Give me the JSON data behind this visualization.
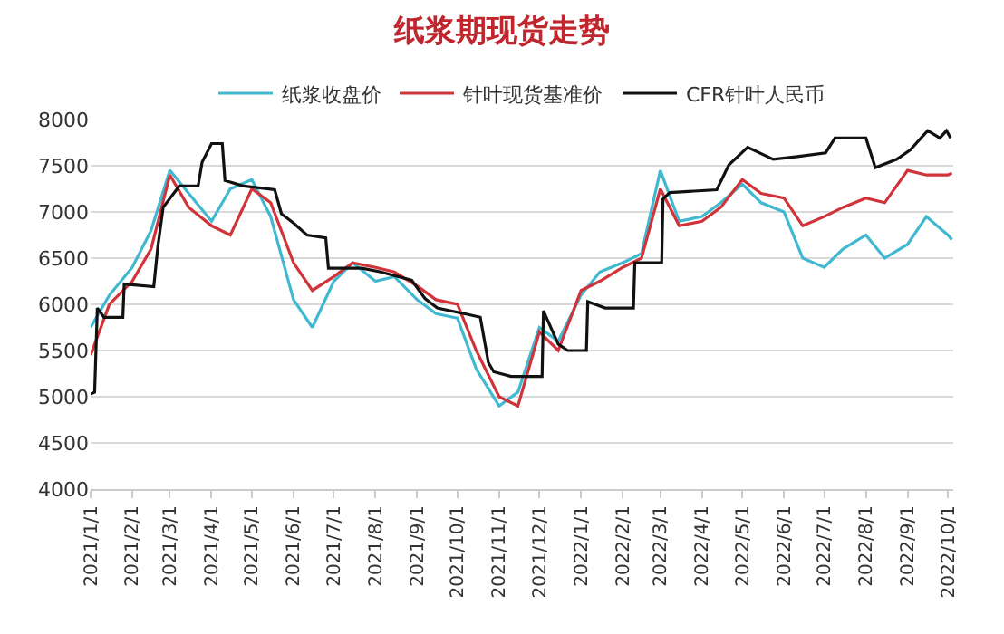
{
  "chart_data": {
    "type": "line",
    "title": "纸浆期现货走势",
    "x": [
      "2021-01-01",
      "2021-01-15",
      "2021-02-01",
      "2021-02-15",
      "2021-03-01",
      "2021-03-15",
      "2021-04-01",
      "2021-04-15",
      "2021-05-01",
      "2021-05-15",
      "2021-06-01",
      "2021-06-15",
      "2021-07-01",
      "2021-07-15",
      "2021-08-01",
      "2021-08-15",
      "2021-09-01",
      "2021-09-15",
      "2021-10-01",
      "2021-10-15",
      "2021-11-01",
      "2021-11-15",
      "2021-12-01",
      "2021-12-15",
      "2022-01-01",
      "2022-01-15",
      "2022-02-01",
      "2022-02-15",
      "2022-03-01",
      "2022-03-15",
      "2022-04-01",
      "2022-04-15",
      "2022-05-01",
      "2022-05-15",
      "2022-06-01",
      "2022-06-15",
      "2022-07-01",
      "2022-07-15",
      "2022-08-01",
      "2022-08-15",
      "2022-09-01",
      "2022-09-15",
      "2022-10-01",
      "2022-10-04"
    ],
    "series": [
      {
        "name": "纸浆收盘价",
        "color": "#3fb8d0",
        "values": [
          5750,
          6100,
          6400,
          6800,
          7450,
          7200,
          6900,
          7250,
          7350,
          6950,
          6050,
          5750,
          6250,
          6450,
          6250,
          6300,
          6050,
          5900,
          5850,
          5300,
          4900,
          5050,
          5750,
          5600,
          6100,
          6350,
          6450,
          6550,
          7450,
          6900,
          6950,
          7100,
          7300,
          7100,
          7000,
          6500,
          6400,
          6600,
          6750,
          6500,
          6650,
          6950,
          6750,
          6700
        ]
      },
      {
        "name": "针叶现货基准价",
        "color": "#d0343a",
        "values": [
          5450,
          6000,
          6250,
          6600,
          7400,
          7050,
          6850,
          6750,
          7250,
          7100,
          6450,
          6150,
          6300,
          6450,
          6400,
          6350,
          6200,
          6050,
          6000,
          5500,
          5000,
          4900,
          5700,
          5500,
          6150,
          6250,
          6400,
          6500,
          7250,
          6850,
          6900,
          7050,
          7350,
          7200,
          7150,
          6850,
          6950,
          7050,
          7150,
          7100,
          7450,
          7400,
          7400,
          7420
        ]
      },
      {
        "name": "CFR针叶人民币",
        "color": "#111111",
        "x": [
          "2021-01-01",
          "2021-01-04",
          "2021-01-06",
          "2021-01-11",
          "2021-01-25",
          "2021-01-26",
          "2021-02-17",
          "2021-02-20",
          "2021-02-24",
          "2021-03-08",
          "2021-03-22",
          "2021-03-25",
          "2021-04-01",
          "2021-04-09",
          "2021-04-11",
          "2021-04-25",
          "2021-05-18",
          "2021-05-23",
          "2021-06-01",
          "2021-06-11",
          "2021-06-25",
          "2021-06-27",
          "2021-07-22",
          "2021-08-05",
          "2021-08-28",
          "2021-09-07",
          "2021-09-16",
          "2021-10-09",
          "2021-10-18",
          "2021-10-24",
          "2021-10-28",
          "2021-11-10",
          "2021-12-03",
          "2021-12-04",
          "2021-12-15",
          "2021-12-22",
          "2022-01-05",
          "2022-01-06",
          "2022-01-19",
          "2022-02-09",
          "2022-02-10",
          "2022-03-02",
          "2022-03-03",
          "2022-03-08",
          "2022-04-12",
          "2022-04-21",
          "2022-05-05",
          "2022-05-24",
          "2022-06-11",
          "2022-07-02",
          "2022-07-09",
          "2022-08-01",
          "2022-08-08",
          "2022-08-24",
          "2022-09-03",
          "2022-09-16",
          "2022-09-25",
          "2022-09-30",
          "2022-10-03"
        ],
        "values": [
          5030,
          5050,
          5960,
          5860,
          5860,
          6220,
          6190,
          6620,
          7050,
          7280,
          7280,
          7540,
          7740,
          7740,
          7340,
          7280,
          7240,
          6980,
          6880,
          6750,
          6720,
          6390,
          6390,
          6350,
          6260,
          6060,
          5960,
          5890,
          5860,
          5370,
          5270,
          5220,
          5220,
          5930,
          5570,
          5500,
          5500,
          6030,
          5960,
          5960,
          6450,
          6450,
          7140,
          7210,
          7240,
          7510,
          7700,
          7570,
          7600,
          7640,
          7800,
          7800,
          7480,
          7570,
          7670,
          7880,
          7800,
          7880,
          7800
        ]
      }
    ],
    "xlim": [
      "2021-01-01",
      "2022-10-05"
    ],
    "xticks": [
      {
        "value": "2021-01-01",
        "label": "2021/1/1"
      },
      {
        "value": "2021-02-01",
        "label": "2021/2/1"
      },
      {
        "value": "2021-03-01",
        "label": "2021/3/1"
      },
      {
        "value": "2021-04-01",
        "label": "2021/4/1"
      },
      {
        "value": "2021-05-01",
        "label": "2021/5/1"
      },
      {
        "value": "2021-06-01",
        "label": "2021/6/1"
      },
      {
        "value": "2021-07-01",
        "label": "2021/7/1"
      },
      {
        "value": "2021-08-01",
        "label": "2021/8/1"
      },
      {
        "value": "2021-09-01",
        "label": "2021/9/1"
      },
      {
        "value": "2021-10-01",
        "label": "2021/10/1"
      },
      {
        "value": "2021-11-01",
        "label": "2021/11/1"
      },
      {
        "value": "2021-12-01",
        "label": "2021/12/1"
      },
      {
        "value": "2022-01-01",
        "label": "2022/1/1"
      },
      {
        "value": "2022-02-01",
        "label": "2022/2/1"
      },
      {
        "value": "2022-03-01",
        "label": "2022/3/1"
      },
      {
        "value": "2022-04-01",
        "label": "2022/4/1"
      },
      {
        "value": "2022-05-01",
        "label": "2022/5/1"
      },
      {
        "value": "2022-06-01",
        "label": "2022/6/1"
      },
      {
        "value": "2022-07-01",
        "label": "2022/7/1"
      },
      {
        "value": "2022-08-01",
        "label": "2022/8/1"
      },
      {
        "value": "2022-09-01",
        "label": "2022/9/1"
      },
      {
        "value": "2022-10-01",
        "label": "2022/10/1"
      }
    ],
    "ylim": [
      4000,
      8000
    ],
    "yticks": [
      4000,
      4500,
      5000,
      5500,
      6000,
      6500,
      7000,
      7500,
      8000
    ],
    "grid": "y",
    "legend": "top",
    "marker": "none",
    "line_style": "solid"
  }
}
